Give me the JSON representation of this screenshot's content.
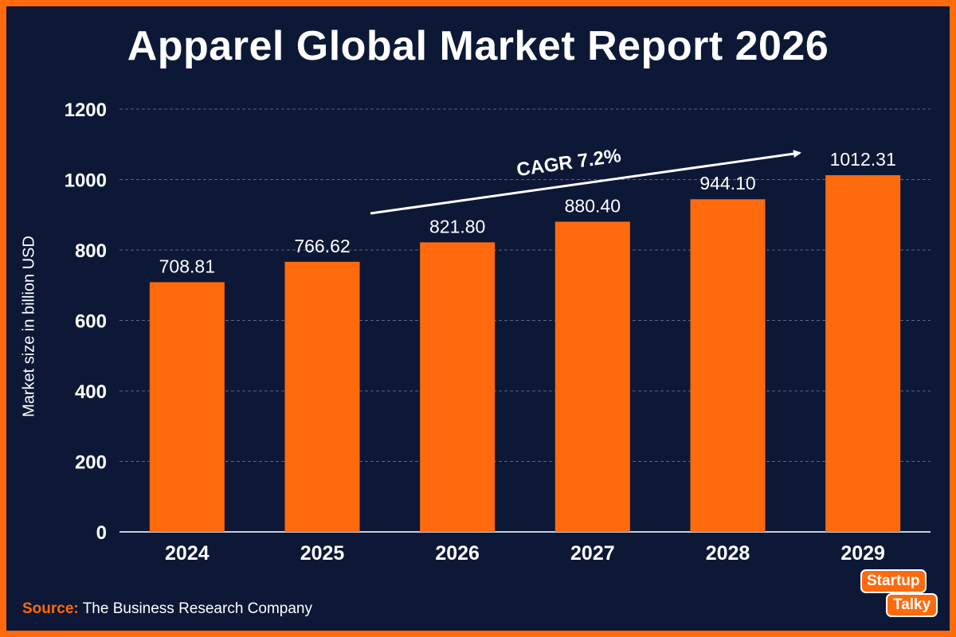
{
  "chart_data": {
    "type": "bar",
    "title": "Apparel Global Market Report 2026",
    "ylabel": "Market size in billion USD",
    "xlabel": "",
    "categories": [
      "2024",
      "2025",
      "2026",
      "2027",
      "2028",
      "2029"
    ],
    "values": [
      708.81,
      766.62,
      821.8,
      880.4,
      944.1,
      1012.31
    ],
    "value_labels": [
      "708.81",
      "766.62",
      "821.80",
      "880.40",
      "944.10",
      "1012.31"
    ],
    "ylim": [
      0,
      1200
    ],
    "yticks": [
      0,
      200,
      400,
      600,
      800,
      1000,
      1200
    ],
    "grid": true,
    "annotation": "CAGR 7.2%",
    "colors": {
      "bar": "#ff6a0e",
      "background": "#0c1836",
      "grid": "#5a6582",
      "text": "#ffffff"
    }
  },
  "source": {
    "label": "Source:",
    "text": "The Business Research Company"
  },
  "logo": {
    "line1": "Startup",
    "line2": "Talky"
  }
}
